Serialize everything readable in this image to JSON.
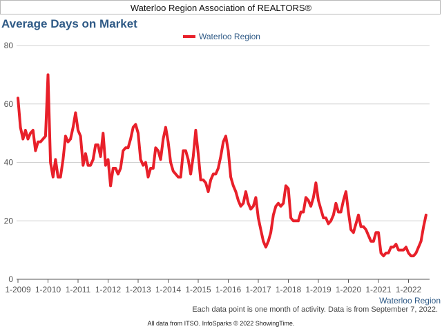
{
  "header": {
    "title": "Waterloo Region Association of REALTORS®"
  },
  "chart_data": {
    "type": "line",
    "title": "Average Days on Market",
    "series": [
      {
        "name": "Waterloo Region",
        "color": "#e8202a",
        "start": "2009-01",
        "frequency": "monthly",
        "values": [
          62,
          52,
          48,
          51,
          48,
          50,
          51,
          44,
          47,
          47,
          48,
          49,
          70,
          40,
          35,
          41,
          35,
          35,
          41,
          49,
          47,
          48,
          52,
          57,
          51,
          49,
          39,
          43,
          39,
          39,
          41,
          46,
          46,
          42,
          50,
          39,
          41,
          32,
          38,
          38,
          36,
          38,
          44,
          45,
          45,
          48,
          52,
          53,
          50,
          41,
          39,
          40,
          35,
          38,
          38,
          45,
          44,
          41,
          48,
          52,
          47,
          40,
          37,
          36,
          35,
          35,
          44,
          44,
          41,
          36,
          42,
          51,
          43,
          34,
          34,
          33,
          30,
          34,
          36,
          36,
          38,
          42,
          47,
          49,
          44,
          35,
          32,
          30,
          27,
          25,
          26,
          30,
          26,
          24,
          25,
          28,
          21,
          17,
          13,
          11,
          13,
          16,
          22,
          25,
          26,
          25,
          26,
          32,
          31,
          21,
          20,
          20,
          20,
          23,
          23,
          28,
          27,
          25,
          28,
          33,
          27,
          24,
          21,
          21,
          19,
          20,
          22,
          26,
          23,
          23,
          27,
          30,
          23,
          17,
          16,
          19,
          22,
          18,
          18,
          17,
          15,
          13,
          13,
          16,
          16,
          9,
          8,
          9,
          9,
          11,
          11,
          12,
          10,
          10,
          10,
          11,
          9,
          8,
          8,
          9,
          11,
          13,
          18,
          22
        ]
      }
    ],
    "x_tick_labels": [
      "1-2009",
      "1-2010",
      "1-2011",
      "1-2012",
      "1-2013",
      "1-2014",
      "1-2015",
      "1-2016",
      "1-2017",
      "1-2018",
      "1-2019",
      "1-2020",
      "1-2021",
      "1-2022"
    ],
    "y_ticks": [
      0,
      20,
      40,
      60,
      80
    ],
    "ylim": [
      0,
      80
    ],
    "grid": "horizontal",
    "legend": "top-center",
    "corner_label": "Waterloo Region"
  },
  "footer": {
    "note": "Each data point is one month of activity. Data is from September 7, 2022.",
    "source": "All data from ITSO. InfoSparks © 2022 ShowingTime."
  }
}
